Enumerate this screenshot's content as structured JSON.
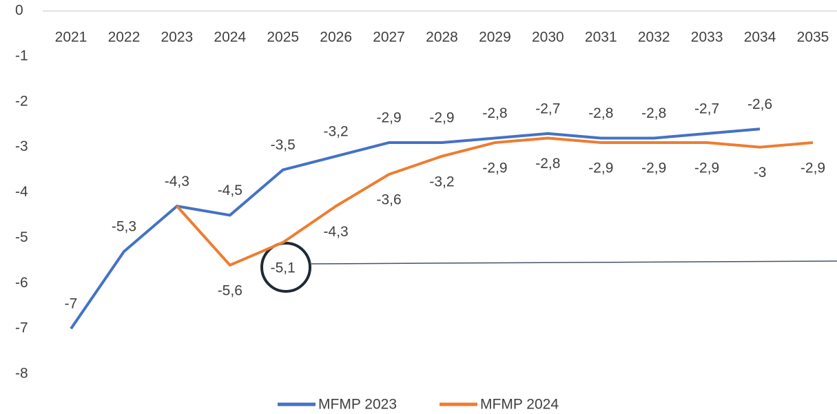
{
  "chart_data": {
    "type": "line",
    "categories": [
      "2021",
      "2022",
      "2023",
      "2024",
      "2025",
      "2026",
      "2027",
      "2028",
      "2029",
      "2030",
      "2031",
      "2032",
      "2033",
      "2034",
      "2035"
    ],
    "series": [
      {
        "name": "MFMP 2023",
        "color": "#4472c4",
        "values": [
          -7,
          -5.3,
          -4.3,
          -4.5,
          -3.5,
          -3.2,
          -2.9,
          -2.9,
          -2.8,
          -2.7,
          -2.8,
          -2.8,
          -2.7,
          -2.6,
          null
        ],
        "value_labels": [
          "-7",
          "-5,3",
          "-4,3",
          "-4,5",
          "-3,5",
          "-3,2",
          "-2,9",
          "-2,9",
          "-2,8",
          "-2,7",
          "-2,8",
          "-2,8",
          "-2,7",
          "-2,6",
          null
        ]
      },
      {
        "name": "MFMP 2024",
        "color": "#ed7d31",
        "values": [
          null,
          null,
          -4.3,
          -5.6,
          -5.1,
          -4.3,
          -3.6,
          -3.2,
          -2.9,
          -2.8,
          -2.9,
          -2.9,
          -2.9,
          -3,
          -2.9
        ],
        "value_labels": [
          null,
          null,
          null,
          "-5,6",
          "-5,1",
          "-4,3",
          "-3,6",
          "-3,2",
          "-2,9",
          "-2,8",
          "-2,9",
          "-2,9",
          "-2,9",
          "-3",
          "-2,9"
        ]
      }
    ],
    "ylim": [
      -8,
      0
    ],
    "yticks": [
      0,
      -1,
      -2,
      -3,
      -4,
      -5,
      -6,
      -7,
      -8
    ],
    "legend": "bottom"
  }
}
